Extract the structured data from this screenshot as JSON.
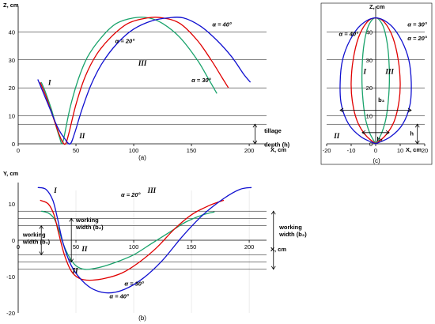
{
  "colors": {
    "alpha20": "#1aa36c",
    "alpha30": "#e00000",
    "alpha40": "#1010d0"
  },
  "chart_data": [
    {
      "id": "a",
      "type": "line",
      "caption": "(a)",
      "ylabel": "Z, cm",
      "xlabel": "X, cm",
      "xlim": [
        0,
        215
      ],
      "ylim": [
        0,
        48
      ],
      "xticks": [
        0,
        50,
        100,
        150,
        200
      ],
      "yticks": [
        0,
        10,
        20,
        30,
        40
      ],
      "gridlines_y": [
        10,
        20,
        30,
        40
      ],
      "reference_line_y": 7,
      "series": [
        {
          "name": "α = 20°",
          "color": "#1aa36c",
          "points": [
            [
              20,
              22
            ],
            [
              24,
              18
            ],
            [
              29,
              12
            ],
            [
              33,
              6
            ],
            [
              36,
              2
            ],
            [
              38,
              0
            ],
            [
              40,
              3
            ],
            [
              45,
              13
            ],
            [
              52,
              23
            ],
            [
              60,
              31
            ],
            [
              72,
              38
            ],
            [
              85,
              43
            ],
            [
              100,
              45
            ],
            [
              113,
              45
            ],
            [
              125,
              43
            ],
            [
              140,
              38
            ],
            [
              155,
              30
            ],
            [
              165,
              23
            ],
            [
              172,
              18
            ]
          ]
        },
        {
          "name": "α = 30°",
          "color": "#e00000",
          "points": [
            [
              19,
              22
            ],
            [
              24,
              17
            ],
            [
              29,
              11
            ],
            [
              34,
              5
            ],
            [
              38,
              1
            ],
            [
              41,
              0
            ],
            [
              44,
              4
            ],
            [
              50,
              14
            ],
            [
              58,
              24
            ],
            [
              68,
              32
            ],
            [
              80,
              38
            ],
            [
              95,
              43
            ],
            [
              112,
              45
            ],
            [
              125,
              45
            ],
            [
              140,
              43
            ],
            [
              155,
              37
            ],
            [
              167,
              30
            ],
            [
              176,
              24
            ],
            [
              182,
              20
            ]
          ]
        },
        {
          "name": "α = 40°",
          "color": "#1010d0",
          "points": [
            [
              17,
              23
            ],
            [
              22,
              18
            ],
            [
              28,
              12
            ],
            [
              34,
              6
            ],
            [
              40,
              2
            ],
            [
              45,
              0
            ],
            [
              49,
              4
            ],
            [
              55,
              12
            ],
            [
              63,
              21
            ],
            [
              73,
              29
            ],
            [
              86,
              36
            ],
            [
              100,
              41
            ],
            [
              116,
              44
            ],
            [
              130,
              45
            ],
            [
              143,
              45
            ],
            [
              158,
              42
            ],
            [
              172,
              37
            ],
            [
              185,
              31
            ],
            [
              195,
              25
            ],
            [
              201,
              22
            ]
          ]
        }
      ],
      "annotations": [
        {
          "text": "α = 20°",
          "x": 84,
          "y": 36
        },
        {
          "text": "α = 30°",
          "x": 150,
          "y": 22
        },
        {
          "text": "α = 40°",
          "x": 168,
          "y": 42
        },
        {
          "text": "I",
          "x": 26,
          "y": 21
        },
        {
          "text": "II",
          "x": 53,
          "y": 2
        },
        {
          "text": "III",
          "x": 104,
          "y": 28
        },
        {
          "text": "tillage",
          "x": 213,
          "y": 4
        },
        {
          "text": "depth (h)",
          "x": 213,
          "y": -1
        }
      ]
    },
    {
      "id": "b",
      "type": "line",
      "caption": "(b)",
      "ylabel": "Y, cm",
      "xlabel": "X, cm",
      "xlim": [
        0,
        215
      ],
      "ylim": [
        -20,
        15
      ],
      "xticks": [
        0,
        50,
        100,
        150,
        200
      ],
      "yticks": [
        -20,
        -10,
        0,
        10
      ],
      "hlines": [
        8,
        6,
        4,
        -4,
        -6,
        -8
      ],
      "series": [
        {
          "name": "α = 20°",
          "color": "#1aa36c",
          "points": [
            [
              20,
              8
            ],
            [
              26,
              7.5
            ],
            [
              31,
              6
            ],
            [
              35,
              3
            ],
            [
              39,
              -1
            ],
            [
              44,
              -4.5
            ],
            [
              50,
              -7
            ],
            [
              58,
              -8
            ],
            [
              70,
              -7.5
            ],
            [
              85,
              -6
            ],
            [
              100,
              -4
            ],
            [
              115,
              -1
            ],
            [
              130,
              2
            ],
            [
              145,
              5
            ],
            [
              160,
              7
            ],
            [
              170,
              7.8
            ]
          ]
        },
        {
          "name": "α = 30°",
          "color": "#e00000",
          "points": [
            [
              19,
              11
            ],
            [
              26,
              10
            ],
            [
              31,
              7
            ],
            [
              35,
              2
            ],
            [
              40,
              -4
            ],
            [
              46,
              -8.5
            ],
            [
              53,
              -10.5
            ],
            [
              62,
              -11
            ],
            [
              75,
              -10.5
            ],
            [
              90,
              -9
            ],
            [
              105,
              -6
            ],
            [
              120,
              -2
            ],
            [
              135,
              3
            ],
            [
              150,
              7
            ],
            [
              165,
              9.5
            ],
            [
              178,
              11
            ]
          ]
        },
        {
          "name": "α = 40°",
          "color": "#1010d0",
          "points": [
            [
              17,
              14.5
            ],
            [
              24,
              14
            ],
            [
              30,
              11
            ],
            [
              34,
              6
            ],
            [
              39,
              -1
            ],
            [
              46,
              -7
            ],
            [
              55,
              -11
            ],
            [
              65,
              -13.5
            ],
            [
              78,
              -14.5
            ],
            [
              92,
              -13.5
            ],
            [
              108,
              -10.5
            ],
            [
              125,
              -5.5
            ],
            [
              142,
              1
            ],
            [
              160,
              7
            ],
            [
              178,
              11.5
            ],
            [
              192,
              14
            ],
            [
              202,
              14.5
            ]
          ]
        }
      ],
      "annotations": [
        {
          "text": "α = 20°",
          "x": 89,
          "y": 12
        },
        {
          "text": "α = 30°",
          "x": 92,
          "y": -12.5
        },
        {
          "text": "α = 40°",
          "x": 79,
          "y": -16
        },
        {
          "text": "I",
          "x": 31,
          "y": 13
        },
        {
          "text": "II",
          "x": 55,
          "y": -3
        },
        {
          "text": "III",
          "x": 112,
          "y": 13
        },
        {
          "text": "II",
          "x": 47,
          "y": -9
        }
      ],
      "width_labels": [
        {
          "lines": [
            "working",
            "width (b₁)"
          ],
          "x": 4,
          "y": 1
        },
        {
          "lines": [
            "working",
            "width (b₂)"
          ],
          "x": 50,
          "y": 5
        },
        {
          "lines": [
            "working",
            "width (b₃)"
          ],
          "x": 226,
          "y": 3
        }
      ]
    },
    {
      "id": "c",
      "type": "line",
      "caption": "(c)",
      "ylabel": "Z, cm",
      "xlabel": "X, cm",
      "xlim": [
        -20,
        20
      ],
      "ylim": [
        0,
        48
      ],
      "xticks": [
        -20,
        -10,
        0,
        10,
        20
      ],
      "yticks": [
        0,
        10,
        20,
        30,
        40
      ],
      "gridlines_y": [
        10,
        20,
        30,
        40
      ],
      "series": [
        {
          "name": "α = 20°",
          "color": "#1aa36c",
          "points": [
            [
              0,
              0
            ],
            [
              -2.5,
              4
            ],
            [
              -4.4,
              10
            ],
            [
              -5.5,
              20
            ],
            [
              -5.4,
              30
            ],
            [
              -4.3,
              38
            ],
            [
              -2.5,
              43
            ],
            [
              0,
              45
            ],
            [
              2.5,
              43
            ],
            [
              4.3,
              38
            ],
            [
              5.4,
              30
            ],
            [
              5.5,
              20
            ],
            [
              4.4,
              10
            ],
            [
              2.5,
              4
            ],
            [
              0,
              0
            ]
          ]
        },
        {
          "name": "α = 30°",
          "color": "#e00000",
          "points": [
            [
              0,
              0
            ],
            [
              -4,
              3
            ],
            [
              -7.5,
              8
            ],
            [
              -9.5,
              15
            ],
            [
              -10,
              22
            ],
            [
              -9.2,
              30
            ],
            [
              -7,
              38
            ],
            [
              -3.5,
              43.5
            ],
            [
              0,
              45
            ],
            [
              3.5,
              43.5
            ],
            [
              7,
              38
            ],
            [
              9.2,
              30
            ],
            [
              10,
              22
            ],
            [
              9.5,
              15
            ],
            [
              7.5,
              8
            ],
            [
              4,
              3
            ],
            [
              0,
              0
            ]
          ]
        },
        {
          "name": "α = 40°",
          "color": "#1010d0",
          "points": [
            [
              0,
              0
            ],
            [
              -6,
              2.5
            ],
            [
              -11,
              7
            ],
            [
              -14,
              14
            ],
            [
              -14.5,
              22
            ],
            [
              -13.5,
              30
            ],
            [
              -10.5,
              37
            ],
            [
              -6,
              42.5
            ],
            [
              0,
              45
            ],
            [
              6,
              42.5
            ],
            [
              10.5,
              37
            ],
            [
              13.5,
              30
            ],
            [
              14.5,
              22
            ],
            [
              14,
              14
            ],
            [
              11,
              7
            ],
            [
              6,
              2.5
            ],
            [
              0,
              0
            ]
          ]
        }
      ],
      "annotations": [
        {
          "text": "α = 40°",
          "x": -15,
          "y": 38.5
        },
        {
          "text": "α = 30°",
          "x": 13,
          "y": 42
        },
        {
          "text": "α = 20°",
          "x": 13,
          "y": 37
        },
        {
          "text": "I",
          "x": -5,
          "y": 25
        },
        {
          "text": "III",
          "x": 4,
          "y": 25
        },
        {
          "text": "II",
          "x": -17,
          "y": 2
        },
        {
          "text": "b₃",
          "x": 1,
          "y": 15
        },
        {
          "text": "b₁",
          "x": 0.5,
          "y": 1
        },
        {
          "text": "h",
          "x": 14,
          "y": 3
        }
      ]
    }
  ]
}
